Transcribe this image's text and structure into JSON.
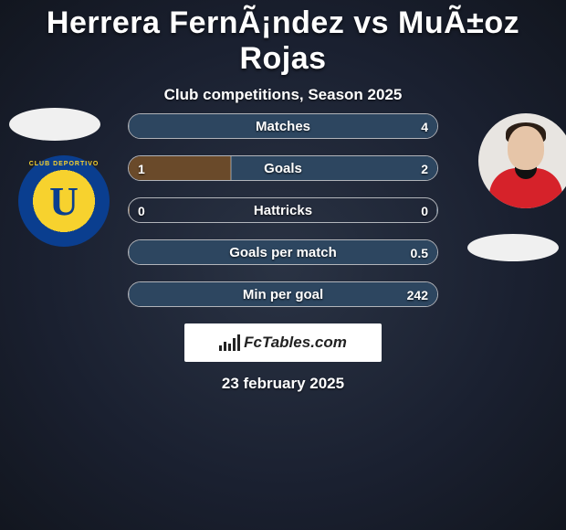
{
  "title": "Herrera FernÃ¡ndez vs MuÃ±oz Rojas",
  "subtitle": "Club competitions, Season 2025",
  "date": "23 february 2025",
  "brand": "FcTables.com",
  "colors": {
    "bg_inner": "#2a3344",
    "bg_outer": "#12161f",
    "bar_border": "rgba(255,255,255,0.65)",
    "fill_left": "#6a4a2a",
    "fill_right": "#2d4660",
    "text": "#ffffff",
    "title_fontsize": 34,
    "subtitle_fontsize": 17,
    "stat_label_fontsize": 15,
    "brand_bg": "#ffffff",
    "brand_text_color": "#222222"
  },
  "club_left": {
    "outer_color": "#0a3e8f",
    "inner_color": "#f7d22e",
    "letter": "U",
    "arc_text": "CLUB DEPORTIVO"
  },
  "stats": [
    {
      "label": "Matches",
      "left_val": "",
      "right_val": "4",
      "left_pct": 0,
      "right_pct": 100
    },
    {
      "label": "Goals",
      "left_val": "1",
      "right_val": "2",
      "left_pct": 33,
      "right_pct": 67
    },
    {
      "label": "Hattricks",
      "left_val": "0",
      "right_val": "0",
      "left_pct": 0,
      "right_pct": 0
    },
    {
      "label": "Goals per match",
      "left_val": "",
      "right_val": "0.5",
      "left_pct": 0,
      "right_pct": 100
    },
    {
      "label": "Min per goal",
      "left_val": "",
      "right_val": "242",
      "left_pct": 0,
      "right_pct": 100
    }
  ]
}
